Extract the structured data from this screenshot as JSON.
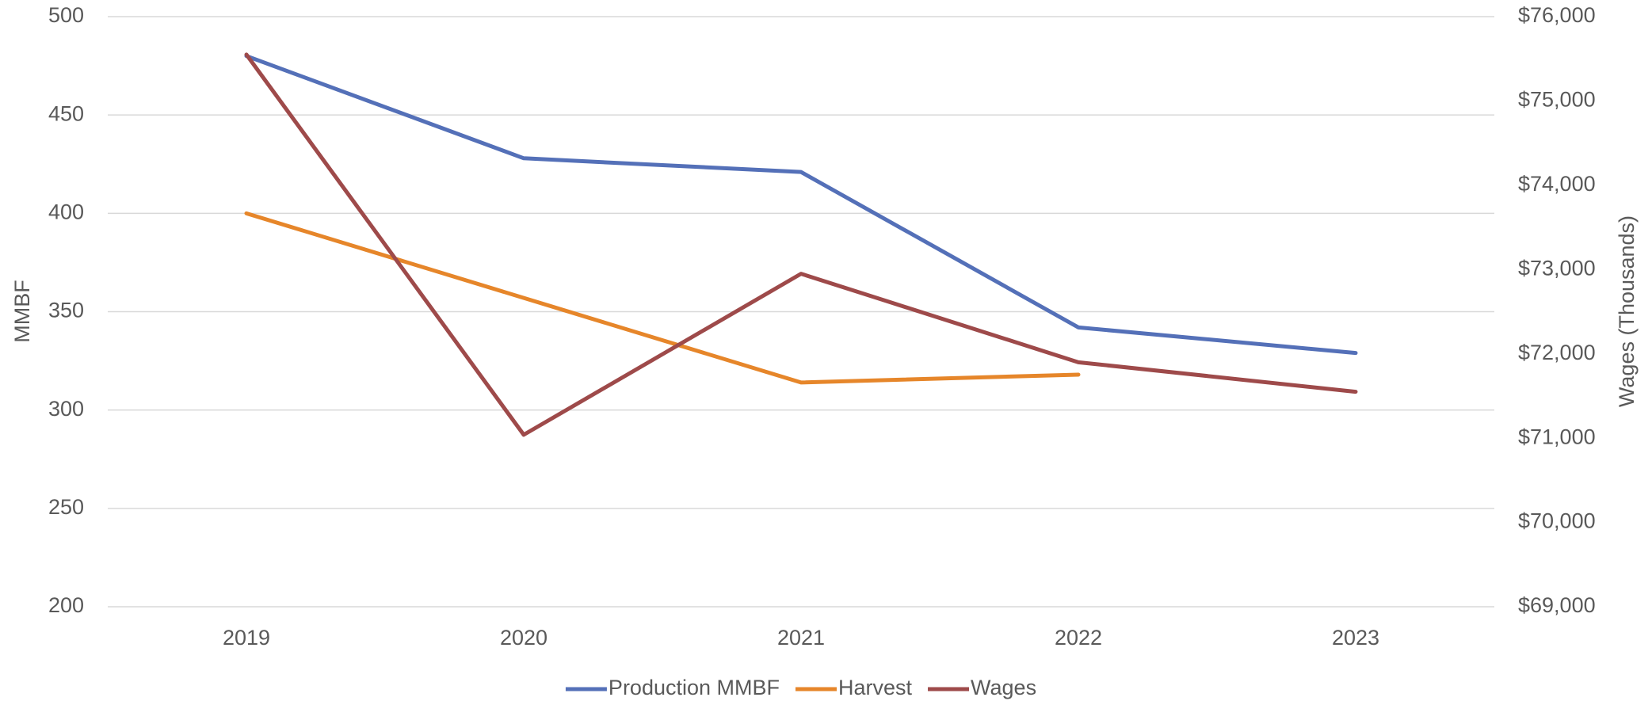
{
  "chart_data": {
    "type": "line",
    "categories": [
      "2019",
      "2020",
      "2021",
      "2022",
      "2023"
    ],
    "series": [
      {
        "name": "Production MMBF",
        "color": "#5470b8",
        "values": [
          480,
          428,
          421,
          342,
          329
        ]
      },
      {
        "name": "Harvest",
        "color": "#e6862a",
        "values": [
          400,
          357,
          314,
          318,
          null
        ]
      },
      {
        "name": "Wages",
        "color": "#9e4a4a",
        "axis": "y2",
        "values": [
          75550,
          71040,
          72950,
          71900,
          71550
        ]
      }
    ],
    "ylabel": "MMBF",
    "y2label": "Wages (Thousands)",
    "ylim": [
      200,
      500
    ],
    "yticks": [
      200,
      250,
      300,
      350,
      400,
      450,
      500
    ],
    "y2lim": [
      69000,
      76000
    ],
    "y2ticks": [
      {
        "value": 69000,
        "label": "$69,000"
      },
      {
        "value": 70000,
        "label": "$70,000"
      },
      {
        "value": 71000,
        "label": "$71,000"
      },
      {
        "value": 72000,
        "label": "$72,000"
      },
      {
        "value": 73000,
        "label": "$73,000"
      },
      {
        "value": 74000,
        "label": "$74,000"
      },
      {
        "value": 75000,
        "label": "$75,000"
      },
      {
        "value": 76000,
        "label": "$76,000"
      }
    ],
    "grid": true,
    "legend": "bottom"
  }
}
